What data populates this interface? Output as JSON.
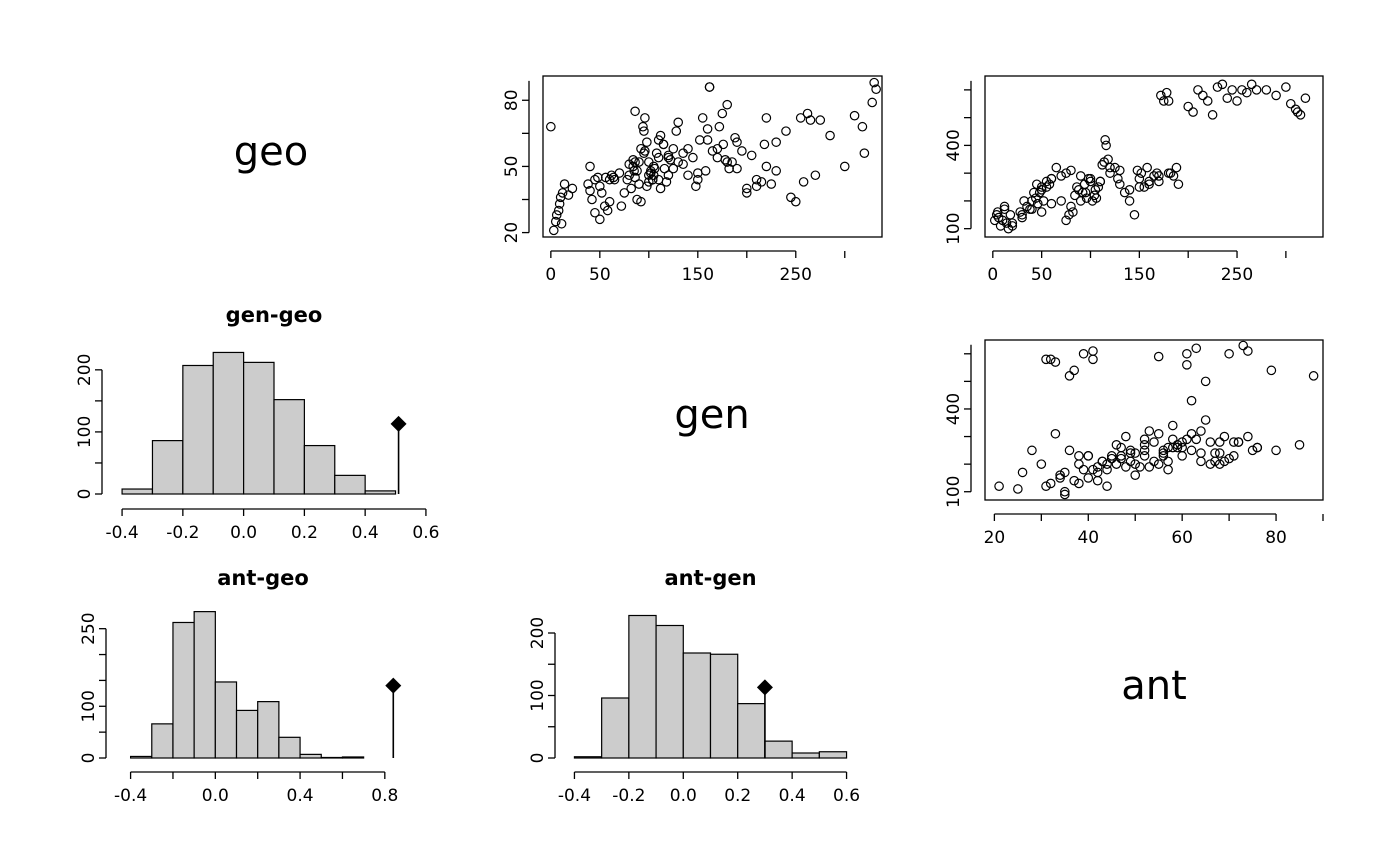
{
  "chart_data": [
    {
      "id": "diag_geo",
      "type": "label",
      "text": "geo"
    },
    {
      "id": "diag_gen",
      "type": "label",
      "text": "gen"
    },
    {
      "id": "diag_ant",
      "type": "label",
      "text": "ant"
    },
    {
      "id": "scatter_geo_gen",
      "type": "scatter",
      "xlim": [
        -8,
        338
      ],
      "ylim": [
        18,
        91
      ],
      "xticks": [
        0,
        50,
        150,
        250
      ],
      "yticks": [
        20,
        50,
        80
      ],
      "x": [
        3,
        5,
        6,
        8,
        9,
        10,
        11,
        12,
        14,
        18,
        22,
        38,
        40,
        42,
        45,
        48,
        50,
        52,
        55,
        58,
        60,
        62,
        65,
        72,
        75,
        78,
        80,
        82,
        84,
        86,
        88,
        90,
        92,
        94,
        95,
        96,
        98,
        100,
        102,
        104,
        105,
        108,
        110,
        112,
        115,
        118,
        120,
        122,
        125,
        128,
        130,
        135,
        140,
        145,
        150,
        152,
        155,
        158,
        160,
        165,
        170,
        172,
        175,
        178,
        180,
        182,
        185,
        188,
        190,
        195,
        200,
        205,
        210,
        215,
        218,
        220,
        225,
        230,
        240,
        245,
        250,
        255,
        258,
        262,
        265,
        270,
        275,
        285,
        300,
        310,
        318,
        320,
        328,
        332,
        45,
        50,
        56,
        85,
        90,
        95,
        100,
        105,
        110,
        115,
        120,
        125,
        130,
        140,
        150,
        160,
        170,
        180,
        190,
        200,
        210,
        220,
        230,
        88,
        92,
        98,
        102,
        110,
        116,
        40,
        60,
        64,
        70,
        80,
        84,
        86,
        96,
        100,
        104,
        106,
        112,
        120,
        135,
        148,
        162,
        176
      ],
      "y": [
        21,
        25,
        28,
        30,
        33,
        36,
        24,
        38,
        42,
        37,
        40,
        42,
        39,
        35,
        44,
        45,
        26,
        38,
        32,
        30,
        34,
        46,
        44,
        32,
        38,
        44,
        46,
        40,
        50,
        52,
        48,
        42,
        58,
        68,
        66,
        72,
        61,
        52,
        48,
        44,
        46,
        56,
        62,
        64,
        60,
        43,
        54,
        53,
        58,
        66,
        70,
        56,
        58,
        54,
        47,
        62,
        72,
        48,
        67,
        57,
        54,
        68,
        74,
        53,
        78,
        49,
        52,
        63,
        61,
        57,
        38,
        55,
        41,
        43,
        60,
        72,
        42,
        61,
        66,
        36,
        34,
        72,
        43,
        74,
        71,
        46,
        71,
        64,
        50,
        73,
        68,
        56,
        79,
        85,
        29,
        41,
        45,
        48,
        52,
        56,
        46,
        50,
        54,
        60,
        55,
        49,
        52,
        46,
        44,
        62,
        58,
        52,
        49,
        40,
        44,
        50,
        48,
        35,
        34,
        41,
        47,
        44,
        49,
        50,
        44,
        45,
        47,
        51,
        53,
        45,
        57,
        43,
        44,
        49,
        40,
        46,
        51,
        41,
        86,
        60
      ],
      "marks": [
        {
          "x": 162,
          "y": 86
        },
        {
          "x": 330,
          "y": 88
        },
        {
          "x": 0,
          "y": 68
        },
        {
          "x": 86,
          "y": 75
        }
      ]
    },
    {
      "id": "scatter_geo_ant",
      "type": "scatter",
      "xlim": [
        -8,
        338
      ],
      "ylim": [
        70,
        650
      ],
      "xticks": [
        0,
        50,
        150,
        250
      ],
      "yticks": [
        100,
        400
      ],
      "x": [
        2,
        4,
        5,
        6,
        8,
        10,
        12,
        14,
        16,
        18,
        20,
        28,
        30,
        32,
        35,
        38,
        40,
        42,
        44,
        46,
        48,
        50,
        52,
        55,
        58,
        60,
        75,
        78,
        80,
        82,
        84,
        86,
        88,
        90,
        92,
        94,
        95,
        96,
        98,
        100,
        102,
        104,
        105,
        106,
        108,
        110,
        112,
        114,
        115,
        116,
        118,
        120,
        125,
        128,
        130,
        135,
        140,
        145,
        148,
        150,
        152,
        155,
        158,
        160,
        165,
        168,
        170,
        172,
        175,
        178,
        180,
        182,
        185,
        188,
        190,
        200,
        205,
        210,
        215,
        220,
        225,
        230,
        235,
        240,
        245,
        250,
        255,
        260,
        265,
        270,
        280,
        290,
        300,
        305,
        310,
        312,
        315,
        320,
        45,
        50,
        55,
        60,
        65,
        70,
        75,
        80,
        90,
        100,
        110,
        120,
        130,
        140,
        150,
        160,
        170,
        180,
        12,
        20,
        30,
        40,
        50,
        60,
        70
      ],
      "y": [
        130,
        150,
        160,
        140,
        110,
        130,
        170,
        120,
        100,
        150,
        120,
        160,
        140,
        200,
        180,
        170,
        200,
        230,
        210,
        190,
        230,
        240,
        200,
        250,
        260,
        280,
        130,
        150,
        180,
        160,
        220,
        250,
        240,
        200,
        230,
        260,
        230,
        210,
        280,
        270,
        200,
        220,
        240,
        210,
        250,
        270,
        330,
        340,
        420,
        400,
        350,
        300,
        320,
        280,
        310,
        230,
        200,
        150,
        310,
        280,
        300,
        250,
        320,
        260,
        290,
        300,
        270,
        580,
        560,
        590,
        560,
        300,
        290,
        320,
        260,
        540,
        520,
        600,
        580,
        560,
        510,
        610,
        620,
        570,
        600,
        560,
        600,
        590,
        620,
        600,
        600,
        580,
        610,
        550,
        530,
        520,
        510,
        570,
        260,
        250,
        270,
        280,
        320,
        290,
        300,
        310,
        290,
        280,
        270,
        320,
        260,
        240,
        250,
        270,
        290,
        300,
        180,
        110,
        150,
        170,
        160,
        190,
        200
      ]
    },
    {
      "id": "hist_gen_geo",
      "type": "bar",
      "title": "gen-geo",
      "bins": [
        -0.4,
        -0.3,
        -0.2,
        -0.1,
        0.0,
        0.1,
        0.2,
        0.3,
        0.4,
        0.5
      ],
      "counts": [
        8,
        86,
        207,
        228,
        212,
        152,
        78,
        30,
        5
      ],
      "xlim": [
        -0.42,
        0.62
      ],
      "ylim": [
        0,
        240
      ],
      "xticks": [
        -0.4,
        -0.2,
        0.0,
        0.2,
        0.4,
        0.6
      ],
      "yticks": [
        0,
        100,
        200
      ],
      "observed": 0.51,
      "observed_height": 113
    },
    {
      "id": "scatter_gen_ant",
      "type": "scatter",
      "xlim": [
        18,
        90
      ],
      "ylim": [
        70,
        650
      ],
      "xticks": [
        20,
        40,
        60,
        80
      ],
      "yticks": [
        100,
        400
      ],
      "x": [
        21,
        25,
        26,
        28,
        30,
        31,
        32,
        33,
        34,
        35,
        36,
        37,
        38,
        39,
        40,
        41,
        42,
        43,
        44,
        45,
        46,
        47,
        48,
        49,
        50,
        51,
        52,
        53,
        54,
        55,
        56,
        57,
        58,
        59,
        60,
        61,
        62,
        63,
        64,
        65,
        66,
        67,
        68,
        69,
        70,
        71,
        72,
        73,
        74,
        75,
        76,
        79,
        80,
        85,
        88,
        31,
        32,
        34,
        35,
        37,
        39,
        40,
        42,
        46,
        48,
        50,
        52,
        54,
        56,
        58,
        60,
        61,
        62,
        64,
        66,
        68,
        70,
        72,
        74,
        76,
        33,
        36,
        38,
        41,
        43,
        44,
        47,
        49,
        52,
        55,
        57,
        59,
        60,
        63,
        65,
        67,
        69,
        71,
        57,
        61,
        40,
        42,
        45,
        50,
        53,
        56,
        58,
        62,
        64,
        68,
        35,
        38,
        41,
        44,
        47,
        49,
        52,
        55
      ],
      "y": [
        120,
        110,
        170,
        250,
        200,
        580,
        580,
        310,
        150,
        90,
        250,
        540,
        130,
        600,
        230,
        580,
        140,
        210,
        120,
        230,
        270,
        260,
        300,
        210,
        240,
        190,
        290,
        320,
        280,
        200,
        230,
        260,
        340,
        270,
        280,
        600,
        310,
        290,
        320,
        360,
        200,
        240,
        280,
        300,
        220,
        230,
        280,
        630,
        300,
        250,
        260,
        540,
        250,
        270,
        520,
        120,
        130,
        160,
        170,
        140,
        180,
        150,
        170,
        200,
        190,
        160,
        230,
        210,
        240,
        290,
        260,
        290,
        250,
        240,
        280,
        240,
        600,
        280,
        610,
        260,
        570,
        520,
        200,
        610,
        210,
        180,
        230,
        250,
        250,
        590,
        210,
        260,
        230,
        620,
        500,
        210,
        210,
        280,
        180,
        560,
        230,
        190,
        220,
        200,
        190,
        250,
        260,
        430,
        210,
        200,
        100,
        230,
        180,
        200,
        220,
        240,
        270,
        310
      ]
    },
    {
      "id": "hist_ant_geo",
      "type": "bar",
      "title": "ant-geo",
      "bins": [
        -0.4,
        -0.3,
        -0.2,
        -0.1,
        0.0,
        0.1,
        0.2,
        0.3,
        0.4,
        0.5,
        0.6,
        0.7
      ],
      "counts": [
        3,
        66,
        262,
        283,
        147,
        92,
        109,
        40,
        7,
        1,
        2
      ],
      "xlim": [
        -0.45,
        0.9
      ],
      "ylim": [
        0,
        290
      ],
      "xticks": [
        -0.4,
        0.0,
        0.4,
        0.8
      ],
      "yticks": [
        0,
        100,
        250
      ],
      "observed": 0.84,
      "observed_height": 140
    },
    {
      "id": "hist_ant_gen",
      "type": "bar",
      "title": "ant-gen",
      "bins": [
        -0.4,
        -0.3,
        -0.2,
        -0.1,
        0.0,
        0.1,
        0.2,
        0.3,
        0.4,
        0.5,
        0.6
      ],
      "counts": [
        2,
        96,
        228,
        212,
        168,
        166,
        87,
        27,
        8,
        10
      ],
      "xlim": [
        -0.42,
        0.62
      ],
      "ylim": [
        0,
        240
      ],
      "xticks": [
        -0.4,
        -0.2,
        0.0,
        0.2,
        0.4,
        0.6
      ],
      "yticks": [
        0,
        100,
        200
      ],
      "observed": 0.3,
      "observed_height": 113
    }
  ]
}
